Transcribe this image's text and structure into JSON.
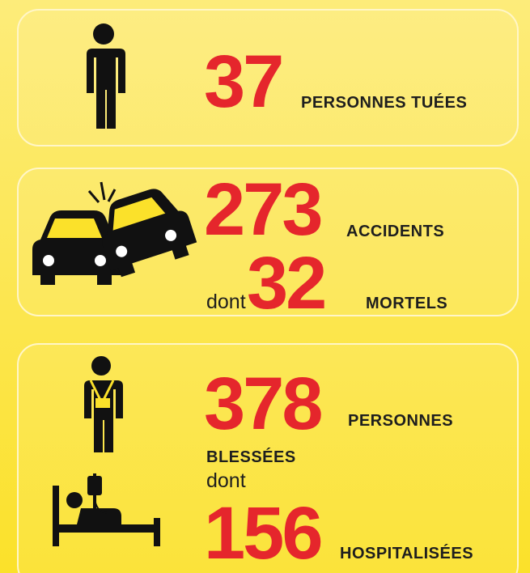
{
  "cards": [
    {
      "number": 37,
      "label": "PERSONNES TUÉES"
    },
    {
      "number": 273,
      "label": "ACCIDENTS",
      "sub_prefix": "dont",
      "sub_number": 32,
      "sub_label": "MORTELS"
    },
    {
      "number": 378,
      "label_line1": "PERSONNES",
      "label_line2": "BLESSÉES",
      "middle": "dont",
      "number2": 156,
      "label2": "HOSPITALISÉES"
    }
  ]
}
